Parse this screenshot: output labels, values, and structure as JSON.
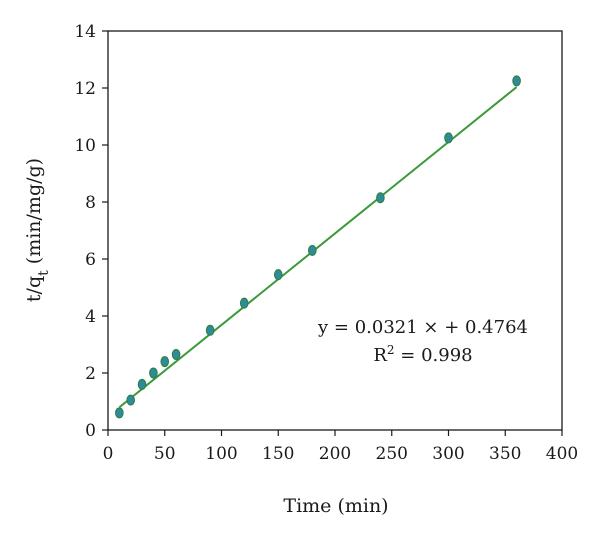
{
  "chart_data": {
    "type": "scatter",
    "xlabel": "Time (min)",
    "ylabel": {
      "prefix": "t/q",
      "sub": "t",
      "suffix": " (min/mg/g)"
    },
    "xlim": [
      0,
      400
    ],
    "ylim": [
      0,
      14
    ],
    "x_ticks": [
      0,
      50,
      100,
      150,
      200,
      250,
      300,
      350,
      400
    ],
    "y_ticks": [
      0,
      2,
      4,
      6,
      8,
      10,
      12,
      14
    ],
    "grid": false,
    "series": [
      {
        "x": [
          10,
          20,
          30,
          40,
          50,
          60,
          90,
          120,
          150,
          180,
          240,
          300,
          360
        ],
        "y": [
          0.6,
          1.05,
          1.6,
          2.0,
          2.4,
          2.65,
          3.5,
          4.45,
          5.45,
          6.3,
          8.15,
          10.25,
          12.25
        ],
        "marker_color": "#2e8b9a"
      }
    ],
    "fit_line": {
      "slope": 0.0321,
      "intercept": 0.4764,
      "x_range": [
        10,
        360
      ],
      "color": "#3a9a3a"
    },
    "annotations": {
      "equation": "y = 0.0321 × + 0.4764",
      "r2": {
        "prefix": "R",
        "sup": "2",
        "suffix": " = 0.998"
      }
    }
  }
}
